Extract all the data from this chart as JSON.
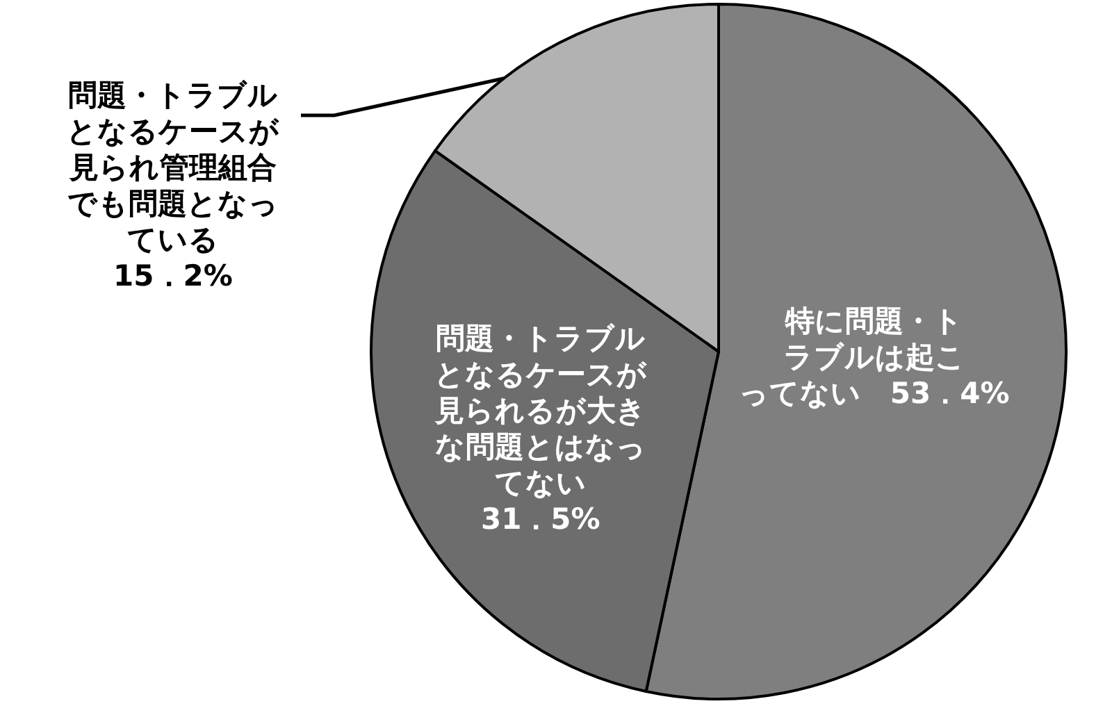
{
  "chart_data": {
    "type": "pie",
    "categories": [
      "特に問題・トラブルは起こってない",
      "問題・トラブルとなるケースが見られるが大きな問題とはなってない",
      "問題・トラブルとなるケースが見られ管理組合でも問題となっている"
    ],
    "values": [
      53.4,
      31.5,
      15.2
    ],
    "value_labels": [
      "53．4%",
      "31．5%",
      "15．2%"
    ],
    "colors": [
      "#7f7f7f",
      "#6d6d6d",
      "#b2b2b2"
    ]
  }
}
